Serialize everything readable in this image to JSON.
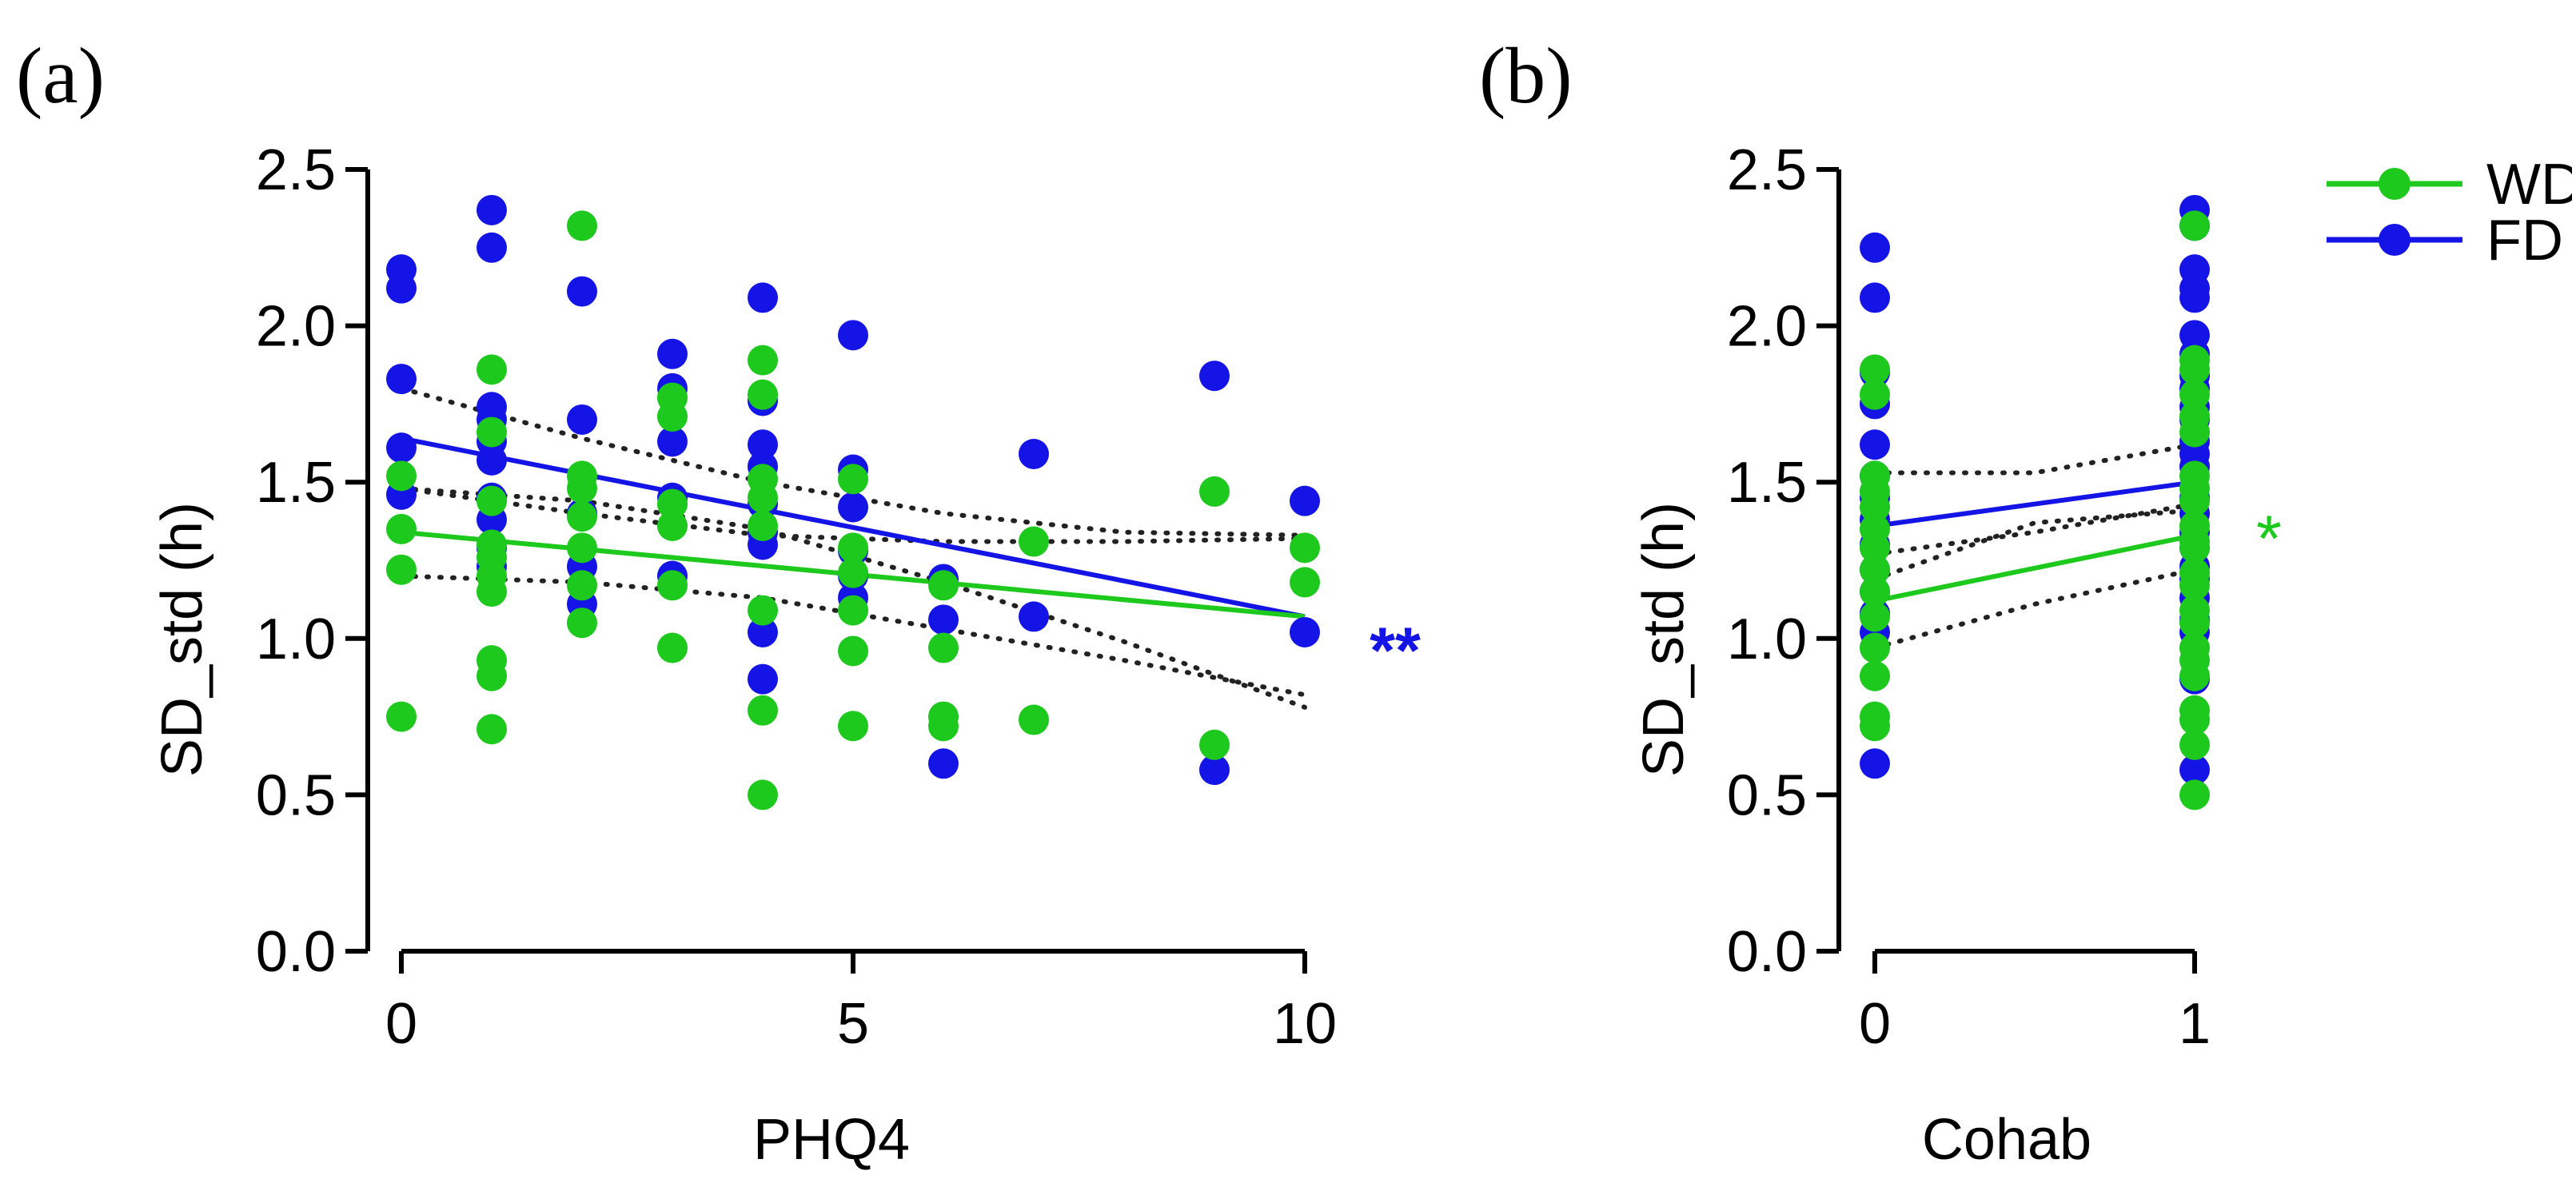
{
  "colors": {
    "WD": "#1dc91d",
    "FD": "#1414e6",
    "ci": "#222222",
    "axis": "#000000"
  },
  "legend": {
    "placement": "top-right",
    "items": [
      {
        "label": "WD",
        "series": "WD"
      },
      {
        "label": "FD",
        "series": "FD"
      }
    ]
  },
  "chart_data": [
    {
      "panel_label": "(a)",
      "type": "scatter",
      "xlabel": "PHQ4",
      "ylabel": "SD_std (h)",
      "xlim": [
        0,
        10
      ],
      "ylim": [
        0,
        2.5
      ],
      "xticks": [
        "0",
        "5",
        "10"
      ],
      "xtick_values": [
        0,
        5,
        10
      ],
      "yticks": [
        "0.0",
        "0.5",
        "1.0",
        "1.5",
        "2.0",
        "2.5"
      ],
      "ytick_values": [
        0,
        0.5,
        1.0,
        1.5,
        2.0,
        2.5
      ],
      "annotation": {
        "text": "**",
        "color": "FD"
      },
      "series": [
        {
          "name": "FD",
          "points": [
            [
              0,
              2.18
            ],
            [
              0,
              2.12
            ],
            [
              0,
              1.83
            ],
            [
              0,
              1.61
            ],
            [
              0,
              1.46
            ],
            [
              1,
              2.37
            ],
            [
              1,
              2.25
            ],
            [
              1,
              1.74
            ],
            [
              1,
              1.7
            ],
            [
              1,
              1.63
            ],
            [
              1,
              1.57
            ],
            [
              1,
              1.45
            ],
            [
              1,
              1.38
            ],
            [
              1,
              1.29
            ],
            [
              1,
              1.23
            ],
            [
              2,
              2.11
            ],
            [
              2,
              1.7
            ],
            [
              2,
              1.4
            ],
            [
              2,
              1.23
            ],
            [
              2,
              1.11
            ],
            [
              3,
              1.91
            ],
            [
              3,
              1.8
            ],
            [
              3,
              1.63
            ],
            [
              3,
              1.45
            ],
            [
              3,
              1.2
            ],
            [
              4,
              2.09
            ],
            [
              4,
              1.76
            ],
            [
              4,
              1.62
            ],
            [
              4,
              1.55
            ],
            [
              4,
              1.43
            ],
            [
              4,
              1.34
            ],
            [
              4,
              1.3
            ],
            [
              4,
              1.02
            ],
            [
              4,
              0.87
            ],
            [
              5,
              1.97
            ],
            [
              5,
              1.54
            ],
            [
              5,
              1.42
            ],
            [
              5,
              1.28
            ],
            [
              5,
              1.2
            ],
            [
              5,
              1.13
            ],
            [
              6,
              1.19
            ],
            [
              6,
              1.06
            ],
            [
              6,
              0.6
            ],
            [
              7,
              1.59
            ],
            [
              7,
              1.07
            ],
            [
              9,
              1.84
            ],
            [
              9,
              0.58
            ],
            [
              10,
              1.44
            ],
            [
              10,
              1.02
            ]
          ],
          "fit": {
            "x": [
              0,
              10
            ],
            "y": [
              1.64,
              1.07
            ]
          },
          "ci_upper": [
            [
              0,
              1.8
            ],
            [
              2,
              1.64
            ],
            [
              4,
              1.5
            ],
            [
              6,
              1.4
            ],
            [
              8,
              1.34
            ],
            [
              10,
              1.33
            ]
          ],
          "ci_lower": [
            [
              0,
              1.48
            ],
            [
              2,
              1.44
            ],
            [
              4,
              1.35
            ],
            [
              6,
              1.18
            ],
            [
              8,
              0.99
            ],
            [
              10,
              0.78
            ]
          ]
        },
        {
          "name": "WD",
          "points": [
            [
              0,
              1.52
            ],
            [
              0,
              1.35
            ],
            [
              0,
              1.22
            ],
            [
              0,
              0.75
            ],
            [
              1,
              1.86
            ],
            [
              1,
              1.66
            ],
            [
              1,
              1.44
            ],
            [
              1,
              1.3
            ],
            [
              1,
              1.26
            ],
            [
              1,
              1.2
            ],
            [
              1,
              1.15
            ],
            [
              1,
              0.93
            ],
            [
              1,
              0.88
            ],
            [
              1,
              0.71
            ],
            [
              2,
              2.32
            ],
            [
              2,
              1.52
            ],
            [
              2,
              1.48
            ],
            [
              2,
              1.39
            ],
            [
              2,
              1.29
            ],
            [
              2,
              1.17
            ],
            [
              2,
              1.05
            ],
            [
              3,
              1.77
            ],
            [
              3,
              1.71
            ],
            [
              3,
              1.43
            ],
            [
              3,
              1.36
            ],
            [
              3,
              1.17
            ],
            [
              3,
              0.97
            ],
            [
              4,
              1.89
            ],
            [
              4,
              1.78
            ],
            [
              4,
              1.51
            ],
            [
              4,
              1.45
            ],
            [
              4,
              1.36
            ],
            [
              4,
              1.09
            ],
            [
              4,
              0.77
            ],
            [
              4,
              0.5
            ],
            [
              5,
              1.51
            ],
            [
              5,
              1.29
            ],
            [
              5,
              1.21
            ],
            [
              5,
              1.09
            ],
            [
              5,
              0.96
            ],
            [
              5,
              0.72
            ],
            [
              6,
              1.17
            ],
            [
              6,
              0.97
            ],
            [
              6,
              0.75
            ],
            [
              6,
              0.72
            ],
            [
              7,
              1.31
            ],
            [
              7,
              0.74
            ],
            [
              9,
              1.47
            ],
            [
              9,
              0.66
            ],
            [
              10,
              1.29
            ],
            [
              10,
              1.18
            ]
          ],
          "fit": {
            "x": [
              0,
              10
            ],
            "y": [
              1.34,
              1.07
            ]
          },
          "ci_upper": [
            [
              0,
              1.48
            ],
            [
              2,
              1.4
            ],
            [
              4,
              1.33
            ],
            [
              6,
              1.31
            ],
            [
              8,
              1.31
            ],
            [
              10,
              1.32
            ]
          ],
          "ci_lower": [
            [
              0,
              1.2
            ],
            [
              2,
              1.18
            ],
            [
              4,
              1.13
            ],
            [
              6,
              1.03
            ],
            [
              8,
              0.93
            ],
            [
              10,
              0.82
            ]
          ]
        }
      ]
    },
    {
      "panel_label": "(b)",
      "type": "scatter",
      "xlabel": "Cohab",
      "ylabel": "SD_std (h)",
      "xlim": [
        0,
        1
      ],
      "ylim": [
        0,
        2.5
      ],
      "xticks": [
        "0",
        "1"
      ],
      "xtick_values": [
        0,
        1
      ],
      "yticks": [
        "0.0",
        "0.5",
        "1.0",
        "1.5",
        "2.0",
        "2.5"
      ],
      "ytick_values": [
        0,
        0.5,
        1.0,
        1.5,
        2.0,
        2.5
      ],
      "annotation": {
        "text": "*",
        "color": "WD"
      },
      "series": [
        {
          "name": "FD",
          "points": [
            [
              0,
              2.25
            ],
            [
              0,
              2.09
            ],
            [
              0,
              1.85
            ],
            [
              0,
              1.75
            ],
            [
              0,
              1.62
            ],
            [
              0,
              1.52
            ],
            [
              0,
              1.45
            ],
            [
              0,
              1.38
            ],
            [
              0,
              1.3
            ],
            [
              0,
              1.22
            ],
            [
              0,
              1.15
            ],
            [
              0,
              1.08
            ],
            [
              0,
              1.02
            ],
            [
              0,
              0.6
            ],
            [
              1,
              2.37
            ],
            [
              1,
              2.32
            ],
            [
              1,
              2.18
            ],
            [
              1,
              2.12
            ],
            [
              1,
              2.09
            ],
            [
              1,
              1.97
            ],
            [
              1,
              1.91
            ],
            [
              1,
              1.84
            ],
            [
              1,
              1.8
            ],
            [
              1,
              1.74
            ],
            [
              1,
              1.7
            ],
            [
              1,
              1.63
            ],
            [
              1,
              1.59
            ],
            [
              1,
              1.55
            ],
            [
              1,
              1.45
            ],
            [
              1,
              1.4
            ],
            [
              1,
              1.34
            ],
            [
              1,
              1.29
            ],
            [
              1,
              1.23
            ],
            [
              1,
              1.19
            ],
            [
              1,
              1.13
            ],
            [
              1,
              1.06
            ],
            [
              1,
              1.02
            ],
            [
              1,
              0.87
            ],
            [
              1,
              0.58
            ]
          ],
          "fit": {
            "x": [
              0,
              1
            ],
            "y": [
              1.36,
              1.5
            ]
          },
          "ci_upper": [
            [
              0,
              1.53
            ],
            [
              0.5,
              1.53
            ],
            [
              1,
              1.62
            ]
          ],
          "ci_lower": [
            [
              0,
              1.19
            ],
            [
              0.5,
              1.37
            ],
            [
              1,
              1.41
            ]
          ]
        },
        {
          "name": "WD",
          "points": [
            [
              0,
              1.86
            ],
            [
              0,
              1.78
            ],
            [
              0,
              1.52
            ],
            [
              0,
              1.47
            ],
            [
              0,
              1.42
            ],
            [
              0,
              1.35
            ],
            [
              0,
              1.29
            ],
            [
              0,
              1.22
            ],
            [
              0,
              1.15
            ],
            [
              0,
              1.07
            ],
            [
              0,
              0.97
            ],
            [
              0,
              0.88
            ],
            [
              0,
              0.75
            ],
            [
              0,
              0.72
            ],
            [
              1,
              2.32
            ],
            [
              1,
              1.89
            ],
            [
              1,
              1.86
            ],
            [
              1,
              1.78
            ],
            [
              1,
              1.71
            ],
            [
              1,
              1.66
            ],
            [
              1,
              1.52
            ],
            [
              1,
              1.48
            ],
            [
              1,
              1.44
            ],
            [
              1,
              1.36
            ],
            [
              1,
              1.31
            ],
            [
              1,
              1.29
            ],
            [
              1,
              1.21
            ],
            [
              1,
              1.17
            ],
            [
              1,
              1.09
            ],
            [
              1,
              1.05
            ],
            [
              1,
              0.97
            ],
            [
              1,
              0.93
            ],
            [
              1,
              0.88
            ],
            [
              1,
              0.77
            ],
            [
              1,
              0.74
            ],
            [
              1,
              0.66
            ],
            [
              1,
              0.5
            ]
          ],
          "fit": {
            "x": [
              0,
              1
            ],
            "y": [
              1.12,
              1.33
            ]
          },
          "ci_upper": [
            [
              0,
              1.27
            ],
            [
              0.5,
              1.34
            ],
            [
              1,
              1.43
            ]
          ],
          "ci_lower": [
            [
              0,
              0.97
            ],
            [
              0.5,
              1.11
            ],
            [
              1,
              1.22
            ]
          ]
        }
      ]
    }
  ]
}
